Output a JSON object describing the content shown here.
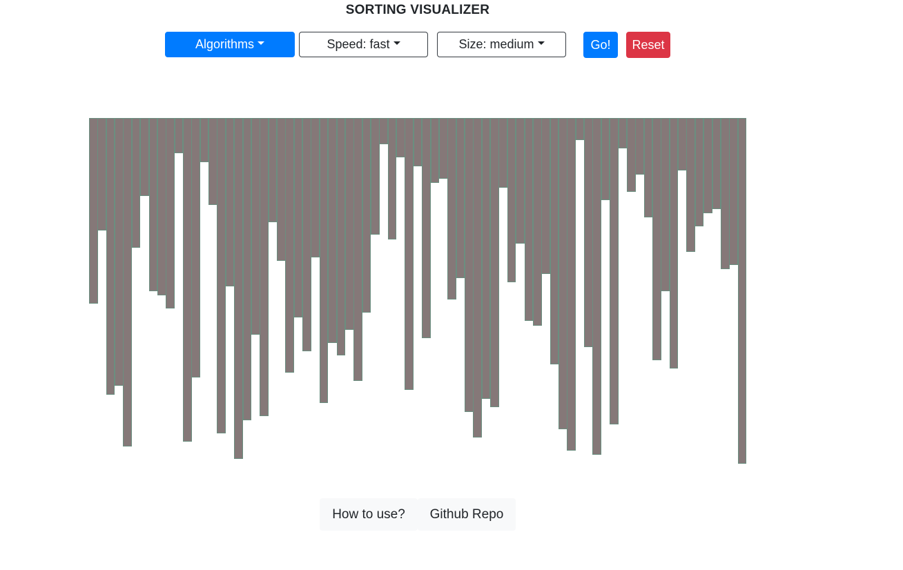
{
  "page": {
    "title": "SORTING VISUALIZER"
  },
  "toolbar": {
    "algorithms_label": "Algorithms",
    "speed_label": "Speed: fast",
    "size_label": "Size: medium",
    "go_label": "Go!",
    "reset_label": "Reset"
  },
  "colors": {
    "primary": "#007bff",
    "danger": "#dc3545",
    "bar": "#857878",
    "footer_bg": "#f8f9fa"
  },
  "bars": {
    "values": [
      269,
      163,
      401,
      388,
      476,
      188,
      113,
      251,
      257,
      276,
      51,
      469,
      376,
      64,
      126,
      457,
      244,
      494,
      438,
      314,
      432,
      151,
      207,
      369,
      289,
      338,
      202,
      413,
      326,
      344,
      307,
      381,
      282,
      169,
      38,
      176,
      57,
      394,
      70,
      319,
      94,
      88,
      263,
      232,
      426,
      463,
      407,
      419,
      101,
      238,
      182,
      294,
      301,
      226,
      357,
      451,
      482,
      32,
      332,
      488,
      119,
      444,
      44,
      107,
      82,
      144,
      351,
      251,
      363,
      76,
      194,
      157,
      138,
      132,
      219,
      213,
      501
    ]
  },
  "footer": {
    "how_to_use_label": "How to use?",
    "github_label": "Github Repo"
  }
}
